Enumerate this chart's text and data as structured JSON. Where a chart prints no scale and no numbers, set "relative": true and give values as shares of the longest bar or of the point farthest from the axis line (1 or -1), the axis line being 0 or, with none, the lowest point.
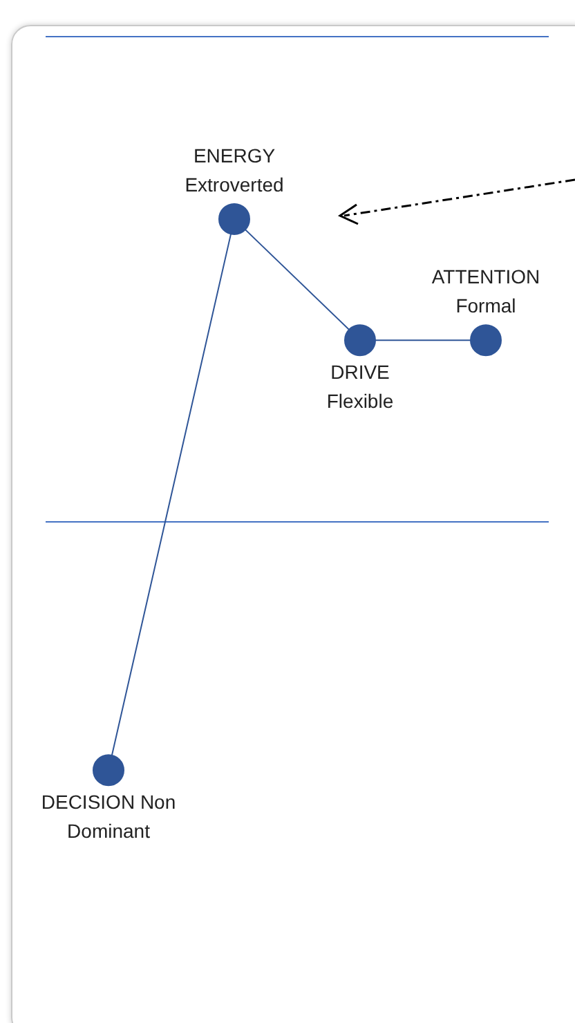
{
  "chart_data": {
    "type": "line",
    "relative": true,
    "marker": "circle",
    "categories": [
      null,
      null,
      null,
      null
    ],
    "ref_lines": [
      {
        "axis": "y",
        "value": 0,
        "color": "#4472c4"
      }
    ],
    "annotations": [
      "DECISION Non\nDominant",
      "ENERGY\nExtroverted",
      "DRIVE\nFlexible",
      "ATTENTION\nFormal"
    ],
    "series": [
      {
        "color": "#2f5597",
        "values": [
          -0.82,
          1,
          0.6,
          0.6
        ]
      }
    ]
  }
}
